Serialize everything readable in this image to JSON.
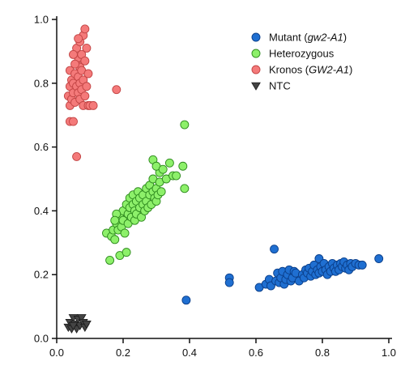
{
  "chart_data": {
    "type": "scatter",
    "title": "",
    "xlabel": "",
    "ylabel": "",
    "xlim": [
      0.0,
      1.0
    ],
    "ylim": [
      0.0,
      1.0
    ],
    "x_ticks": [
      "0.0",
      "0.2",
      "0.4",
      "0.6",
      "0.8",
      "1.0"
    ],
    "y_ticks": [
      "0.0",
      "0.2",
      "0.4",
      "0.6",
      "0.8",
      "1.0"
    ],
    "grid": false,
    "legend_position": "top-right",
    "series": [
      {
        "name": "Mutant (gw2-A1)",
        "label_parts": [
          {
            "text": "Mutant (",
            "italic": false
          },
          {
            "text": "gw2-A1",
            "italic": true
          },
          {
            "text": ")",
            "italic": false
          }
        ],
        "marker": "circle",
        "color": "#1f6fd1",
        "edge_color": "#0b3f8a",
        "points": [
          [
            0.39,
            0.12
          ],
          [
            0.52,
            0.19
          ],
          [
            0.52,
            0.175
          ],
          [
            0.61,
            0.16
          ],
          [
            0.63,
            0.17
          ],
          [
            0.64,
            0.185
          ],
          [
            0.645,
            0.165
          ],
          [
            0.655,
            0.28
          ],
          [
            0.66,
            0.18
          ],
          [
            0.665,
            0.205
          ],
          [
            0.67,
            0.175
          ],
          [
            0.675,
            0.19
          ],
          [
            0.68,
            0.21
          ],
          [
            0.685,
            0.17
          ],
          [
            0.69,
            0.185
          ],
          [
            0.695,
            0.2
          ],
          [
            0.7,
            0.215
          ],
          [
            0.705,
            0.18
          ],
          [
            0.71,
            0.19
          ],
          [
            0.715,
            0.21
          ],
          [
            0.72,
            0.205
          ],
          [
            0.73,
            0.18
          ],
          [
            0.74,
            0.2
          ],
          [
            0.745,
            0.19
          ],
          [
            0.75,
            0.215
          ],
          [
            0.755,
            0.205
          ],
          [
            0.76,
            0.22
          ],
          [
            0.765,
            0.195
          ],
          [
            0.77,
            0.21
          ],
          [
            0.775,
            0.23
          ],
          [
            0.78,
            0.2
          ],
          [
            0.785,
            0.215
          ],
          [
            0.79,
            0.25
          ],
          [
            0.79,
            0.205
          ],
          [
            0.795,
            0.225
          ],
          [
            0.8,
            0.21
          ],
          [
            0.805,
            0.235
          ],
          [
            0.81,
            0.215
          ],
          [
            0.815,
            0.2
          ],
          [
            0.82,
            0.225
          ],
          [
            0.825,
            0.21
          ],
          [
            0.83,
            0.235
          ],
          [
            0.835,
            0.22
          ],
          [
            0.84,
            0.21
          ],
          [
            0.845,
            0.23
          ],
          [
            0.85,
            0.215
          ],
          [
            0.855,
            0.235
          ],
          [
            0.86,
            0.225
          ],
          [
            0.865,
            0.24
          ],
          [
            0.87,
            0.22
          ],
          [
            0.875,
            0.23
          ],
          [
            0.88,
            0.215
          ],
          [
            0.885,
            0.235
          ],
          [
            0.89,
            0.225
          ],
          [
            0.9,
            0.235
          ],
          [
            0.91,
            0.23
          ],
          [
            0.92,
            0.23
          ],
          [
            0.97,
            0.25
          ]
        ]
      },
      {
        "name": "Heterozygous",
        "label_parts": [
          {
            "text": "Heterozygous",
            "italic": false
          }
        ],
        "marker": "circle",
        "color": "#8df06a",
        "edge_color": "#2e8a1e",
        "points": [
          [
            0.16,
            0.245
          ],
          [
            0.15,
            0.33
          ],
          [
            0.165,
            0.32
          ],
          [
            0.17,
            0.34
          ],
          [
            0.175,
            0.31
          ],
          [
            0.18,
            0.36
          ],
          [
            0.185,
            0.34
          ],
          [
            0.19,
            0.26
          ],
          [
            0.19,
            0.38
          ],
          [
            0.195,
            0.35
          ],
          [
            0.2,
            0.4
          ],
          [
            0.2,
            0.37
          ],
          [
            0.205,
            0.33
          ],
          [
            0.21,
            0.27
          ],
          [
            0.21,
            0.42
          ],
          [
            0.215,
            0.39
          ],
          [
            0.215,
            0.36
          ],
          [
            0.22,
            0.44
          ],
          [
            0.22,
            0.41
          ],
          [
            0.225,
            0.38
          ],
          [
            0.23,
            0.45
          ],
          [
            0.23,
            0.42
          ],
          [
            0.235,
            0.4
          ],
          [
            0.235,
            0.37
          ],
          [
            0.24,
            0.43
          ],
          [
            0.24,
            0.39
          ],
          [
            0.245,
            0.46
          ],
          [
            0.25,
            0.41
          ],
          [
            0.25,
            0.44
          ],
          [
            0.255,
            0.38
          ],
          [
            0.26,
            0.45
          ],
          [
            0.26,
            0.42
          ],
          [
            0.265,
            0.4
          ],
          [
            0.27,
            0.47
          ],
          [
            0.27,
            0.43
          ],
          [
            0.275,
            0.41
          ],
          [
            0.28,
            0.48
          ],
          [
            0.28,
            0.45
          ],
          [
            0.285,
            0.42
          ],
          [
            0.29,
            0.46
          ],
          [
            0.29,
            0.5
          ],
          [
            0.295,
            0.44
          ],
          [
            0.3,
            0.47
          ],
          [
            0.3,
            0.43
          ],
          [
            0.305,
            0.45
          ],
          [
            0.31,
            0.49
          ],
          [
            0.31,
            0.52
          ],
          [
            0.315,
            0.46
          ],
          [
            0.29,
            0.56
          ],
          [
            0.3,
            0.54
          ],
          [
            0.32,
            0.53
          ],
          [
            0.33,
            0.5
          ],
          [
            0.34,
            0.55
          ],
          [
            0.35,
            0.51
          ],
          [
            0.36,
            0.51
          ],
          [
            0.38,
            0.54
          ],
          [
            0.385,
            0.47
          ],
          [
            0.385,
            0.67
          ],
          [
            0.18,
            0.39
          ],
          [
            0.175,
            0.37
          ]
        ]
      },
      {
        "name": "Kronos (GW2-A1)",
        "label_parts": [
          {
            "text": "Kronos (",
            "italic": false
          },
          {
            "text": "GW2-A1",
            "italic": true
          },
          {
            "text": ")",
            "italic": false
          }
        ],
        "marker": "circle",
        "color": "#f47a7a",
        "edge_color": "#c24444",
        "points": [
          [
            0.04,
            0.68
          ],
          [
            0.05,
            0.68
          ],
          [
            0.04,
            0.73
          ],
          [
            0.035,
            0.76
          ],
          [
            0.045,
            0.75
          ],
          [
            0.04,
            0.79
          ],
          [
            0.045,
            0.81
          ],
          [
            0.04,
            0.84
          ],
          [
            0.05,
            0.77
          ],
          [
            0.05,
            0.8
          ],
          [
            0.055,
            0.74
          ],
          [
            0.055,
            0.83
          ],
          [
            0.06,
            0.79
          ],
          [
            0.06,
            0.86
          ],
          [
            0.06,
            0.91
          ],
          [
            0.065,
            0.77
          ],
          [
            0.065,
            0.82
          ],
          [
            0.065,
            0.88
          ],
          [
            0.07,
            0.75
          ],
          [
            0.07,
            0.8
          ],
          [
            0.07,
            0.85
          ],
          [
            0.07,
            0.93
          ],
          [
            0.075,
            0.78
          ],
          [
            0.075,
            0.84
          ],
          [
            0.075,
            0.89
          ],
          [
            0.08,
            0.73
          ],
          [
            0.08,
            0.81
          ],
          [
            0.08,
            0.95
          ],
          [
            0.085,
            0.76
          ],
          [
            0.085,
            0.87
          ],
          [
            0.085,
            0.97
          ],
          [
            0.09,
            0.79
          ],
          [
            0.09,
            0.91
          ],
          [
            0.095,
            0.73
          ],
          [
            0.095,
            0.83
          ],
          [
            0.1,
            0.73
          ],
          [
            0.11,
            0.73
          ],
          [
            0.06,
            0.57
          ],
          [
            0.18,
            0.78
          ],
          [
            0.05,
            0.89
          ],
          [
            0.055,
            0.86
          ],
          [
            0.065,
            0.94
          ]
        ]
      },
      {
        "name": "NTC",
        "label_parts": [
          {
            "text": "NTC",
            "italic": false
          }
        ],
        "marker": "triangle-down",
        "color": "#444444",
        "edge_color": "#1a1a1a",
        "points": [
          [
            0.035,
            0.035
          ],
          [
            0.04,
            0.05
          ],
          [
            0.045,
            0.03
          ],
          [
            0.05,
            0.065
          ],
          [
            0.055,
            0.045
          ],
          [
            0.06,
            0.03
          ],
          [
            0.065,
            0.06
          ],
          [
            0.07,
            0.04
          ],
          [
            0.075,
            0.065
          ],
          [
            0.08,
            0.05
          ],
          [
            0.085,
            0.035
          ],
          [
            0.09,
            0.045
          ],
          [
            0.05,
            0.04
          ]
        ]
      }
    ]
  }
}
